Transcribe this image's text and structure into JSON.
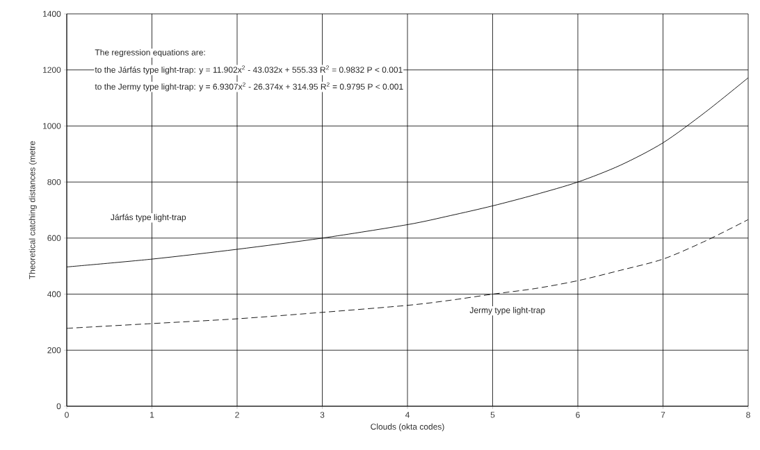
{
  "chart_data": {
    "type": "line",
    "xlabel": "Clouds (okta codes)",
    "ylabel": "Theoretical catching distances (metre",
    "xlim": [
      0,
      8
    ],
    "ylim": [
      0,
      1400
    ],
    "xticks": [
      0,
      1,
      2,
      3,
      4,
      5,
      6,
      7,
      8
    ],
    "yticks": [
      0,
      200,
      400,
      600,
      800,
      1000,
      1200,
      1400
    ],
    "grid": true,
    "marker": "none",
    "x": [
      0,
      1,
      2,
      3,
      4,
      4.5,
      5,
      5.5,
      6,
      6.5,
      7,
      7.5,
      8
    ],
    "series": [
      {
        "color": "#000000",
        "line_style": "solid",
        "values": [
          497,
          525,
          560,
          600,
          648,
          680,
          715,
          755,
          800,
          860,
          940,
          1050,
          1172
        ]
      },
      {
        "color": "#000000",
        "line_style": "dashed",
        "values": [
          278,
          295,
          312,
          335,
          360,
          378,
          400,
          420,
          448,
          485,
          525,
          590,
          666
        ]
      }
    ],
    "annotations": [
      "The regression equations are:",
      "to the Járfás type light-trap: y = 11.902x$^{2}$ - 43.032x + 555.33 R$^{2}$ = 0.9832 P < 0.001",
      "to the Jermy type light-trap: y = 6.9307x$^{2}$ - 26.374x + 314.95 R$^{2}$ = 0.9795 P < 0.001",
      "Járfás type light-trap",
      "Jermy type light-trap"
    ]
  }
}
